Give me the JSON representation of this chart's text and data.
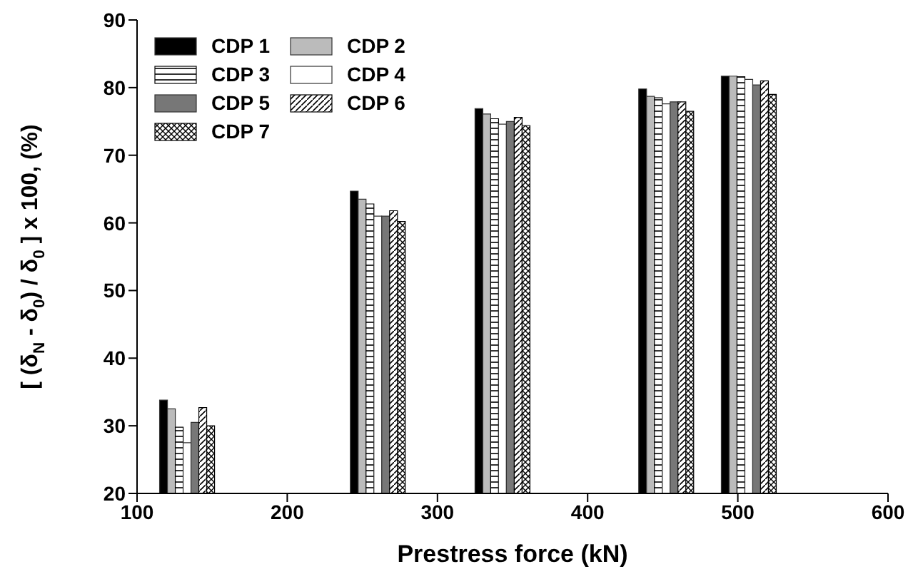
{
  "chart_data": {
    "type": "bar",
    "xlabel": "Prestress force (kN)",
    "ylabel": "[ (δ$_{N}$ - δ$_{0}$) / δ$_{0}$ ] x 100,  (%)",
    "x": [
      133,
      260,
      343,
      452,
      507
    ],
    "xlim": [
      100,
      600
    ],
    "xticks": [
      100,
      200,
      300,
      400,
      500,
      600
    ],
    "ylim": [
      20,
      90
    ],
    "yticks": [
      20,
      30,
      40,
      50,
      60,
      70,
      80,
      90
    ],
    "legend": "top left",
    "grid": false,
    "series": [
      {
        "name": "CDP 1",
        "color": "#000000",
        "values": [
          33.8,
          64.7,
          76.9,
          79.8,
          81.7
        ]
      },
      {
        "name": "CDP 2",
        "color": "#bbbbbb",
        "values": [
          32.5,
          63.5,
          76.1,
          78.7,
          81.7
        ]
      },
      {
        "name": "CDP 3",
        "color": "#000000",
        "values": [
          29.8,
          62.8,
          75.4,
          78.5,
          81.6
        ]
      },
      {
        "name": "CDP 4",
        "color": "#ffffff",
        "values": [
          27.5,
          61.0,
          74.6,
          77.6,
          81.2
        ]
      },
      {
        "name": "CDP 5",
        "color": "#777777",
        "values": [
          30.5,
          61.0,
          75.0,
          77.9,
          80.4
        ]
      },
      {
        "name": "CDP 6",
        "color": "#000000",
        "values": [
          32.7,
          61.8,
          75.6,
          77.9,
          81.0
        ]
      },
      {
        "name": "CDP 7",
        "color": "#000000",
        "values": [
          30.0,
          60.2,
          74.4,
          76.5,
          79.0
        ]
      }
    ]
  }
}
